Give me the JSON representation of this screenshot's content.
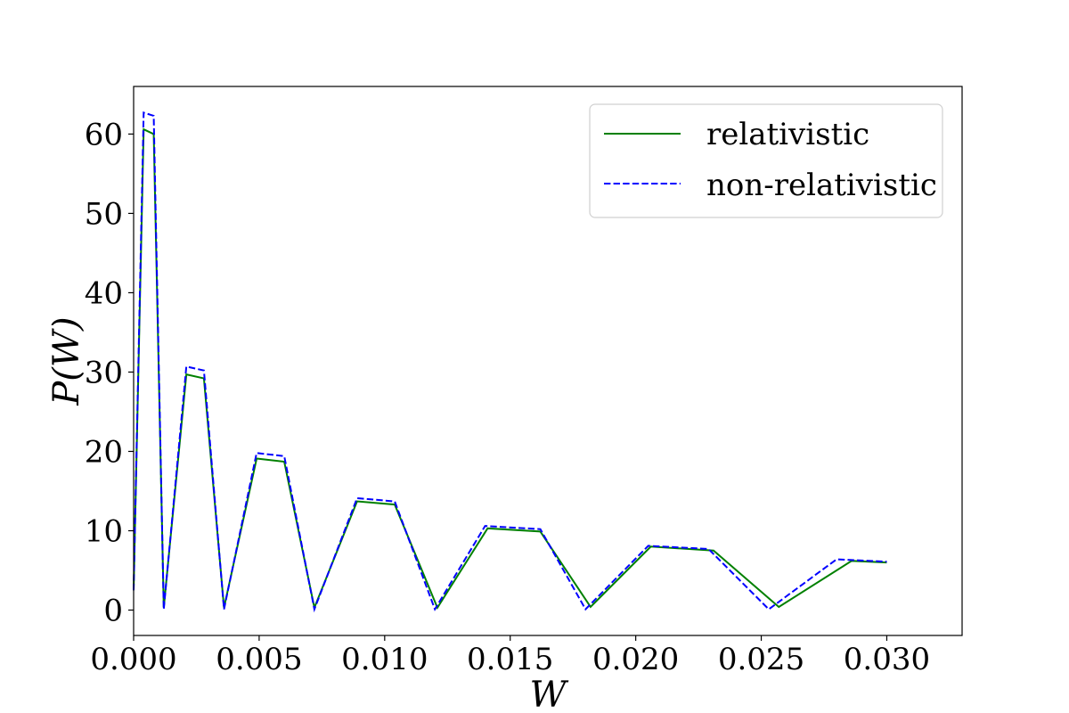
{
  "chart_data": {
    "type": "line",
    "xlabel": "W",
    "ylabel": "P(W)",
    "xlim": [
      0.0,
      0.033
    ],
    "ylim": [
      -3.2,
      66
    ],
    "xticks": [
      0.0,
      0.005,
      0.01,
      0.015,
      0.02,
      0.025,
      0.03
    ],
    "xtick_labels": [
      "0.000",
      "0.005",
      "0.010",
      "0.015",
      "0.020",
      "0.025",
      "0.030"
    ],
    "yticks": [
      0,
      10,
      20,
      30,
      40,
      50,
      60
    ],
    "ytick_labels": [
      "0",
      "10",
      "20",
      "30",
      "40",
      "50",
      "60"
    ],
    "grid": false,
    "legend_position": "top-right",
    "series": [
      {
        "name": "relativistic",
        "color": "#008000",
        "style": "solid",
        "x": [
          0.0,
          0.0004,
          0.0008,
          0.0012,
          0.0021,
          0.0028,
          0.0036,
          0.0049,
          0.006,
          0.0072,
          0.0089,
          0.0104,
          0.0121,
          0.0141,
          0.0162,
          0.0182,
          0.0206,
          0.0231,
          0.0257,
          0.0286,
          0.03
        ],
        "y": [
          2.5,
          60.6,
          60.0,
          0.3,
          29.7,
          29.2,
          0.3,
          19.1,
          18.7,
          0.3,
          13.7,
          13.3,
          0.3,
          10.3,
          9.9,
          0.4,
          8.0,
          7.5,
          0.4,
          6.2,
          6.0
        ]
      },
      {
        "name": "non-relativistic",
        "color": "#0000ff",
        "style": "dashed",
        "x": [
          0.0,
          0.0004,
          0.0008,
          0.0012,
          0.0021,
          0.0028,
          0.0036,
          0.0049,
          0.006,
          0.0072,
          0.0089,
          0.0104,
          0.012,
          0.014,
          0.0162,
          0.018,
          0.0205,
          0.0229,
          0.0253,
          0.028,
          0.03
        ],
        "y": [
          2.5,
          62.7,
          62.3,
          0.1,
          30.7,
          30.2,
          0.1,
          19.8,
          19.4,
          0.1,
          14.1,
          13.7,
          0.1,
          10.6,
          10.2,
          0.1,
          8.1,
          7.7,
          0.1,
          6.4,
          6.1
        ]
      }
    ]
  }
}
